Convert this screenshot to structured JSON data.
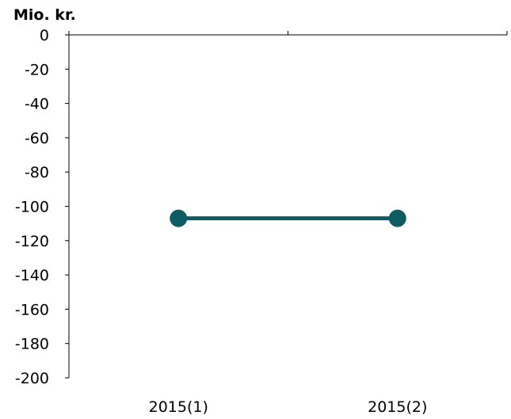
{
  "chart_data": {
    "type": "line",
    "title": "",
    "ylabel": "Mio. kr.",
    "xlabel": "",
    "categories": [
      "2015(1)",
      "2015(2)"
    ],
    "series": [
      {
        "values": [
          -107,
          -107
        ],
        "color": "#0d5c63"
      }
    ],
    "ylim": [
      -200,
      0
    ],
    "yticks": [
      0,
      -20,
      -40,
      -60,
      -80,
      -100,
      -120,
      -140,
      -160,
      -180,
      -200
    ],
    "xaxis_at": 0,
    "grid": false,
    "legend": "none"
  }
}
